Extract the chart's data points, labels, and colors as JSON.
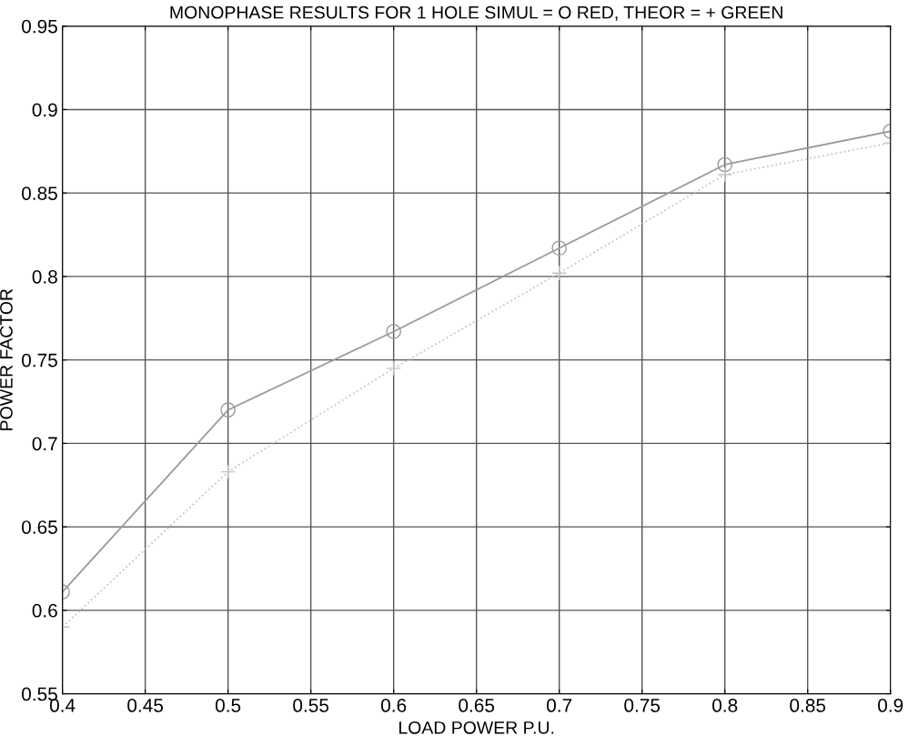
{
  "chart_data": {
    "type": "line",
    "title": "MONOPHASE RESULTS FOR 1 HOLE SIMUL = O RED, THEOR = + GREEN",
    "xlabel": "LOAD POWER P.U.",
    "ylabel": "POWER FACTOR",
    "x": [
      0.4,
      0.5,
      0.6,
      0.7,
      0.8,
      0.9
    ],
    "series": [
      {
        "color": "#9a9a9a",
        "marker": "circle",
        "line_style": "solid",
        "values": [
          0.611,
          0.72,
          0.767,
          0.817,
          0.867,
          0.887
        ]
      },
      {
        "color": "#c4c4c4",
        "marker": "cross",
        "line_style": "dotted",
        "values": [
          0.59,
          0.683,
          0.745,
          0.802,
          0.861,
          0.88
        ]
      }
    ],
    "xlim": [
      0.4,
      0.9
    ],
    "ylim": [
      0.55,
      0.95
    ],
    "xticks": [
      0.4,
      0.45,
      0.5,
      0.55,
      0.6,
      0.65,
      0.7,
      0.75,
      0.8,
      0.85,
      0.9
    ],
    "yticks": [
      0.55,
      0.6,
      0.65,
      0.7,
      0.75,
      0.8,
      0.85,
      0.9,
      0.95
    ],
    "grid": true
  }
}
